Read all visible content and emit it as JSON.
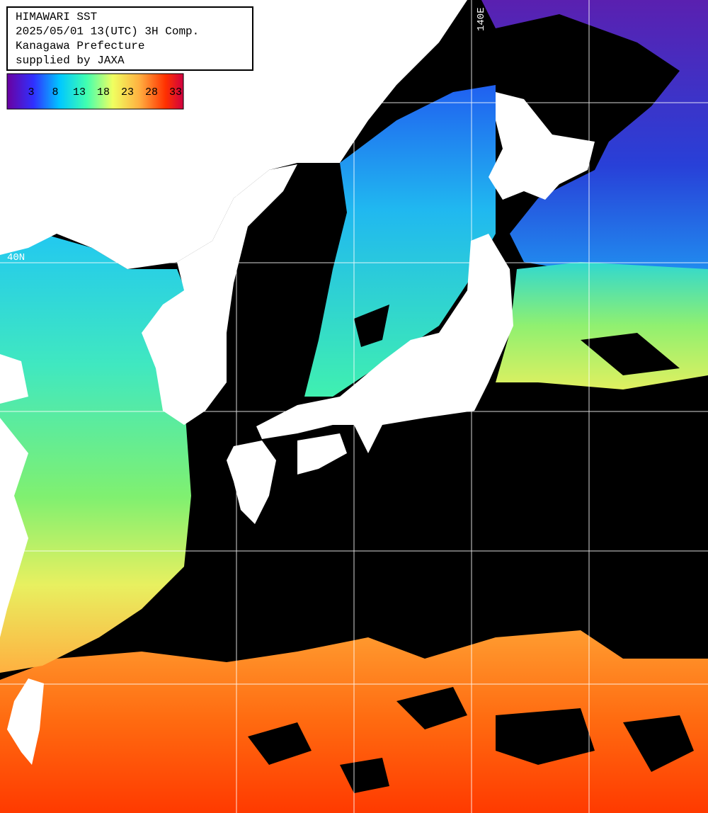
{
  "header": {
    "lines": [
      "HIMAWARI SST",
      "2025/05/01 13(UTC) 3H Comp.",
      "Kanagawa Prefecture",
      "supplied by JAXA"
    ]
  },
  "colorbar": {
    "labels": [
      3,
      8,
      13,
      18,
      23,
      28,
      33
    ]
  },
  "grid_labels": {
    "latitude": "40N",
    "longitude": "140E"
  }
}
